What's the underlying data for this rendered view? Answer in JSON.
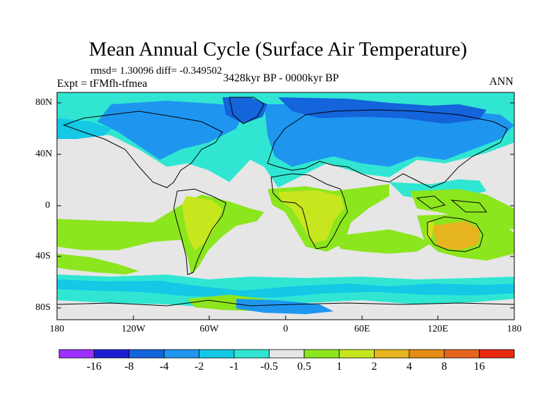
{
  "title": "Mean Annual Cycle (Surface Air Temperature)",
  "stats_line": "rmsd= 1.30096 diff= -0.349502",
  "experiment": "Expt = tFMfh-tfmea",
  "period": "3428kyr BP - 0000kyr BP",
  "season": "ANN",
  "lat_labels": [
    "80N",
    "40N",
    "0",
    "40S",
    "80S"
  ],
  "lon_labels": [
    "180",
    "120W",
    "60W",
    "0",
    "60E",
    "120E",
    "180"
  ],
  "colorbar": {
    "labels": [
      "-16",
      "-8",
      "-4",
      "-2",
      "-1",
      "-0.5",
      "0.5",
      "1",
      "2",
      "4",
      "8",
      "16"
    ],
    "colors": [
      "#9b30ff",
      "#1e1ed2",
      "#1464dc",
      "#1e96f0",
      "#14c8e6",
      "#30e6d2",
      "#e6e6e6",
      "#8ce61e",
      "#c8e61e",
      "#e6b41e",
      "#e68c14",
      "#e6641e",
      "#e6280f"
    ]
  }
}
